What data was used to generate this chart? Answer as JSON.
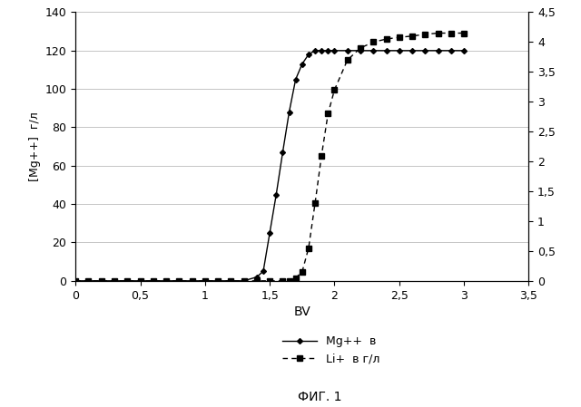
{
  "mg_x": [
    0,
    0.1,
    0.2,
    0.3,
    0.4,
    0.5,
    0.6,
    0.7,
    0.8,
    0.9,
    1.0,
    1.1,
    1.2,
    1.3,
    1.4,
    1.45,
    1.5,
    1.55,
    1.6,
    1.65,
    1.7,
    1.75,
    1.8,
    1.85,
    1.9,
    1.95,
    2.0,
    2.1,
    2.2,
    2.3,
    2.4,
    2.5,
    2.6,
    2.7,
    2.8,
    2.9,
    3.0
  ],
  "mg_y": [
    0,
    0,
    0,
    0,
    0,
    0,
    0,
    0,
    0,
    0,
    0,
    0,
    0,
    0,
    2,
    5,
    25,
    45,
    67,
    88,
    105,
    113,
    118,
    120,
    120,
    120,
    120,
    120,
    120,
    120,
    120,
    120,
    120,
    120,
    120,
    120,
    120
  ],
  "li_x": [
    0,
    0.1,
    0.2,
    0.3,
    0.4,
    0.5,
    0.6,
    0.7,
    0.8,
    0.9,
    1.0,
    1.1,
    1.2,
    1.3,
    1.4,
    1.5,
    1.6,
    1.65,
    1.7,
    1.75,
    1.8,
    1.85,
    1.9,
    1.95,
    2.0,
    2.1,
    2.2,
    2.3,
    2.4,
    2.5,
    2.6,
    2.7,
    2.8,
    2.9,
    3.0
  ],
  "li_y": [
    0,
    0,
    0,
    0,
    0,
    0,
    0,
    0,
    0,
    0,
    0,
    0,
    0,
    0,
    0,
    0,
    0,
    0,
    0.05,
    0.15,
    0.55,
    1.3,
    2.1,
    2.8,
    3.2,
    3.7,
    3.9,
    4.0,
    4.05,
    4.08,
    4.1,
    4.13,
    4.15,
    4.15,
    4.15
  ],
  "xlabel": "BV",
  "ylabel_left": "[Mg++]  г/л",
  "caption": "ФИГ. 1",
  "legend_mg": "Mg++  в",
  "legend_li": "Li+  в г/л",
  "xlim": [
    0,
    3.5
  ],
  "ylim_left": [
    0,
    140
  ],
  "ylim_right": [
    0,
    4.5
  ],
  "xticks": [
    0,
    0.5,
    1,
    1.5,
    2,
    2.5,
    3,
    3.5
  ],
  "yticks_left": [
    0,
    20,
    40,
    60,
    80,
    100,
    120,
    140
  ],
  "yticks_right": [
    0,
    0.5,
    1,
    1.5,
    2,
    2.5,
    3,
    3.5,
    4,
    4.5
  ],
  "background_color": "#ffffff",
  "line_color": "#000000"
}
